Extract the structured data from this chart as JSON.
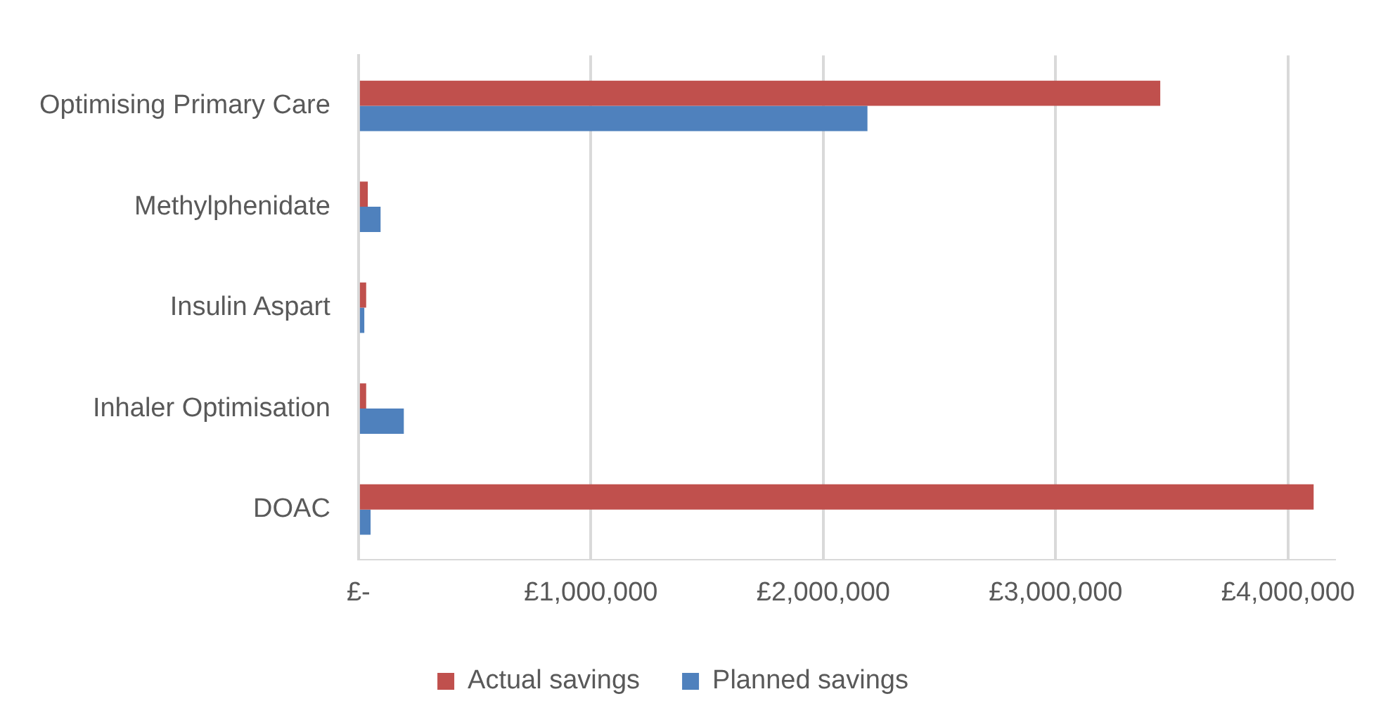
{
  "chart_data": {
    "type": "bar",
    "orientation": "horizontal",
    "categories": [
      "Optimising Primary Care",
      "Methylphenidate",
      "Insulin Aspart",
      "Inhaler Optimisation",
      "DOAC"
    ],
    "series": [
      {
        "name": "Actual savings",
        "color": "#c0504d",
        "values": [
          3450000,
          40000,
          33000,
          33000,
          4110000
        ]
      },
      {
        "name": "Planned savings",
        "color": "#4f81bd",
        "values": [
          2190000,
          95000,
          25000,
          195000,
          52000
        ]
      }
    ],
    "xticks": [
      {
        "value": 0,
        "label": "£-"
      },
      {
        "value": 1000000,
        "label": "£1,000,000"
      },
      {
        "value": 2000000,
        "label": "£2,000,000"
      },
      {
        "value": 3000000,
        "label": "£3,000,000"
      },
      {
        "value": 4000000,
        "label": "£4,000,000"
      }
    ],
    "xlim": [
      0,
      4200000
    ],
    "grid": "x",
    "legend": "bottom"
  }
}
